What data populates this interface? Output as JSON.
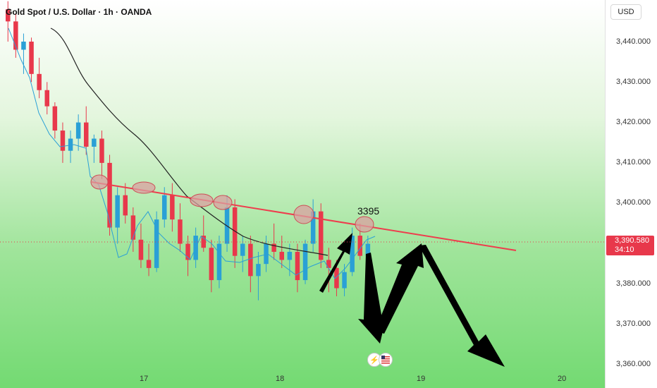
{
  "header": {
    "title": "Gold Spot / U.S. Dollar · 1h · OANDA"
  },
  "axis": {
    "currency": "USD",
    "price_ticks": [
      "3,440.000",
      "3,430.000",
      "3,420.000",
      "3,410.000",
      "3,400.000",
      "3,390.000",
      "3,380.000",
      "3,370.000",
      "3,360.000"
    ],
    "date_ticks": [
      "17",
      "18",
      "19",
      "20"
    ]
  },
  "price_badge": {
    "price": "3,390.580",
    "countdown": "34:10"
  },
  "annotation": {
    "label": "3395"
  },
  "icons": [
    "lightning-icon",
    "us-flag-icon"
  ],
  "colors": {
    "up": "#2aa0d6",
    "down": "#e8384b",
    "trendline": "#ee3d4d",
    "arrow": "#000000",
    "ma_slow": "#222222",
    "ma_fast": "#2aa0d6"
  },
  "chart_data": {
    "type": "candlestick",
    "symbol": "XAUUSD",
    "timeframe": "1h",
    "ylim": [
      3357,
      3450
    ],
    "ohlc": [
      [
        3448,
        3450,
        3440,
        3445
      ],
      [
        3445,
        3447,
        3436,
        3438
      ],
      [
        3438,
        3442,
        3432,
        3440
      ],
      [
        3440,
        3441,
        3430,
        3432
      ],
      [
        3432,
        3436,
        3426,
        3428
      ],
      [
        3428,
        3430,
        3422,
        3424
      ],
      [
        3424,
        3425,
        3416,
        3418
      ],
      [
        3418,
        3420,
        3410,
        3413
      ],
      [
        3413,
        3418,
        3410,
        3416
      ],
      [
        3416,
        3422,
        3413,
        3420
      ],
      [
        3420,
        3424,
        3412,
        3414
      ],
      [
        3414,
        3417,
        3410,
        3416
      ],
      [
        3416,
        3418,
        3406,
        3410
      ],
      [
        3410,
        3412,
        3392,
        3394
      ],
      [
        3394,
        3404,
        3390,
        3402
      ],
      [
        3402,
        3405,
        3395,
        3397
      ],
      [
        3397,
        3399,
        3388,
        3391
      ],
      [
        3391,
        3395,
        3384,
        3386
      ],
      [
        3386,
        3390,
        3382,
        3384
      ],
      [
        3384,
        3398,
        3383,
        3396
      ],
      [
        3396,
        3404,
        3394,
        3402
      ],
      [
        3402,
        3405,
        3393,
        3396
      ],
      [
        3396,
        3400,
        3388,
        3390
      ],
      [
        3390,
        3392,
        3382,
        3386
      ],
      [
        3386,
        3394,
        3384,
        3392
      ],
      [
        3392,
        3397,
        3388,
        3389
      ],
      [
        3389,
        3391,
        3378,
        3381
      ],
      [
        3381,
        3392,
        3379,
        3390
      ],
      [
        3390,
        3402,
        3388,
        3399
      ],
      [
        3399,
        3401,
        3384,
        3387
      ],
      [
        3387,
        3392,
        3383,
        3390
      ],
      [
        3390,
        3392,
        3378,
        3382
      ],
      [
        3382,
        3388,
        3376,
        3385
      ],
      [
        3385,
        3392,
        3383,
        3390
      ],
      [
        3390,
        3395,
        3386,
        3388
      ],
      [
        3388,
        3392,
        3384,
        3386
      ],
      [
        3386,
        3390,
        3382,
        3388
      ],
      [
        3388,
        3390,
        3378,
        3381
      ],
      [
        3381,
        3391,
        3380,
        3390
      ],
      [
        3390,
        3401,
        3388,
        3398
      ],
      [
        3398,
        3400,
        3384,
        3386
      ],
      [
        3386,
        3389,
        3378,
        3384
      ],
      [
        3384,
        3386,
        3377,
        3379
      ],
      [
        3379,
        3385,
        3377,
        3383
      ],
      [
        3383,
        3394,
        3382,
        3392
      ],
      [
        3392,
        3395,
        3386,
        3387
      ],
      [
        3387,
        3392,
        3385,
        3390
      ]
    ],
    "trendline": {
      "from": [
        "16 ~12:00",
        3404.5
      ],
      "to": [
        "19 ~06:00",
        3389.5
      ]
    },
    "marked_highs": [
      3404.5,
      3403.0,
      3400.5,
      3400.0,
      3398.5,
      3395
    ],
    "projection_path": [
      3380,
      3386,
      3395,
      3374,
      3390,
      3360
    ],
    "annotation": "3395"
  }
}
